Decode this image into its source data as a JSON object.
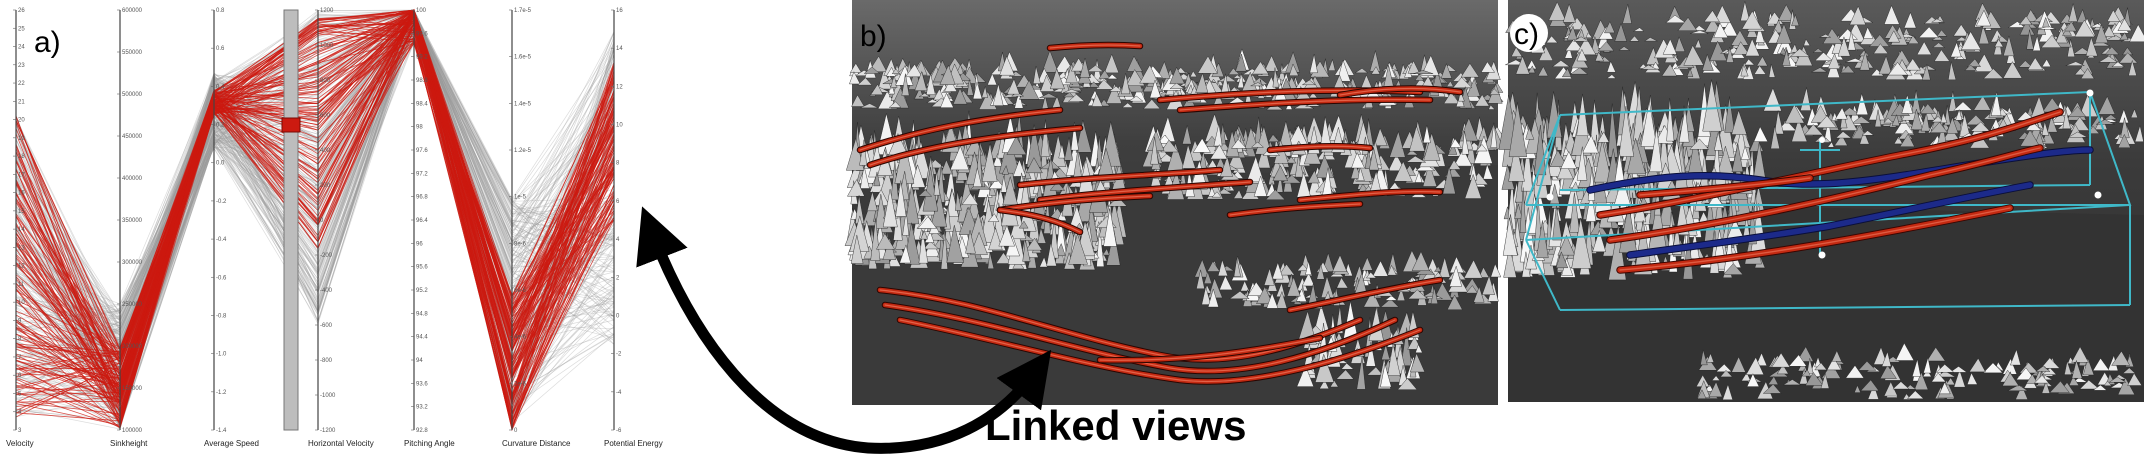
{
  "panels": {
    "a": {
      "label": "a)"
    },
    "b": {
      "label": "b)"
    },
    "c": {
      "label": "c)"
    }
  },
  "parallel_coordinates": {
    "axes": [
      {
        "name": "Velocity",
        "ticks": [
          "26",
          "25",
          "24",
          "23",
          "22",
          "21",
          "20",
          "19",
          "18",
          "17",
          "16",
          "15",
          "14",
          "13",
          "12",
          "11",
          "10",
          "9",
          "8",
          "7",
          "6",
          "5",
          "4",
          "3"
        ]
      },
      {
        "name": "Sinkheight",
        "ticks": [
          "600000",
          "550000",
          "500000",
          "450000",
          "400000",
          "350000",
          "300000",
          "250000",
          "200000",
          "150000",
          "100000"
        ]
      },
      {
        "name": "Average Speed",
        "ticks": [
          "0.8",
          "0.6",
          "0.4",
          "0.2",
          "0.0",
          "-0.2",
          "-0.4",
          "-0.6",
          "-0.8",
          "-1.0",
          "-1.2",
          "-1.4"
        ]
      },
      {
        "name": "Horizontal Velocity",
        "ticks": [
          "1200",
          "1000",
          "800",
          "600",
          "400",
          "200",
          "0",
          "-200",
          "-400",
          "-600",
          "-800",
          "-1000",
          "-1200"
        ]
      },
      {
        "name": "Pitching Angle",
        "ticks": [
          "100",
          "99.6",
          "99.2",
          "98.8",
          "98.4",
          "98",
          "97.6",
          "97.2",
          "96.8",
          "96.4",
          "96",
          "95.6",
          "95.2",
          "94.8",
          "94.4",
          "94",
          "93.6",
          "93.2",
          "92.8"
        ]
      },
      {
        "name": "Curvature Distance",
        "ticks": [
          "1.7e-5",
          "1.6e-5",
          "1.4e-5",
          "1.2e-5",
          "1e-5",
          "8e-6",
          "6e-6",
          "4e-6",
          "2e-6",
          "0"
        ]
      },
      {
        "name": "Potential Energy",
        "ticks": [
          "16",
          "14",
          "12",
          "10",
          "8",
          "6",
          "4",
          "2",
          "0",
          "-2",
          "-4",
          "-6"
        ]
      }
    ]
  },
  "annotation": {
    "text": "Linked views"
  },
  "colors": {
    "selected_lines": "#cc1a10",
    "context_lines": "#9a9a9a",
    "tubes_red": "#c42a12",
    "tubes_blue": "#1c2a8a",
    "bounding_box": "#3fb8c8",
    "terrain_dark": "#3a3a3a"
  }
}
